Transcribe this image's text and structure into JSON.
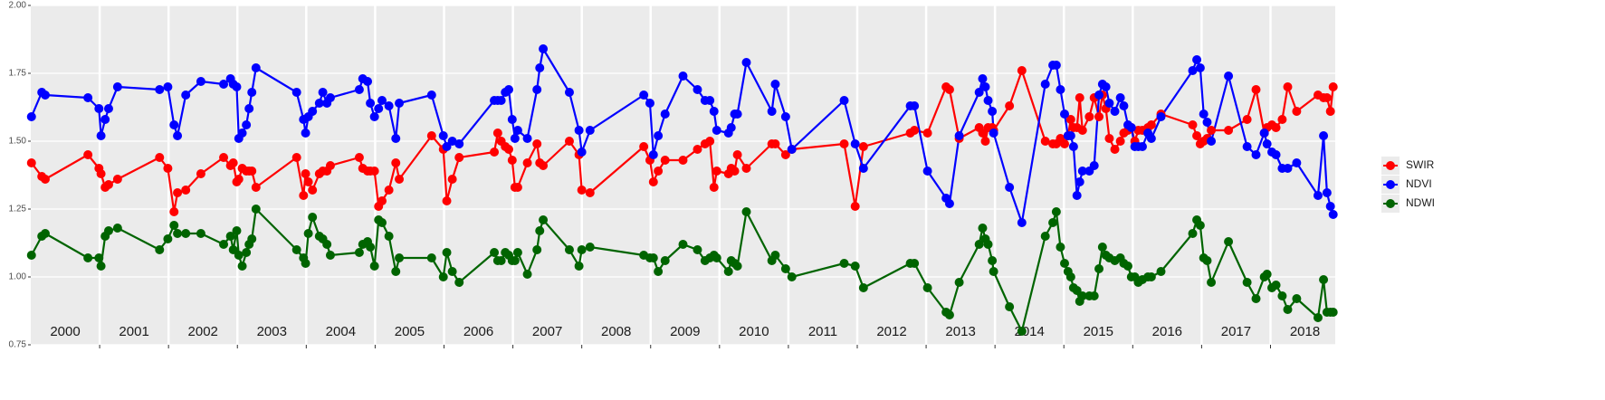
{
  "chart_data": {
    "type": "line",
    "x": [
      2000.01,
      2000.16,
      2000.21,
      2000.83,
      2000.99,
      2001.02,
      2001.08,
      2001.13,
      2001.26,
      2001.87,
      2001.99,
      2002.08,
      2002.13,
      2002.25,
      2002.47,
      2002.8,
      2002.9,
      2002.94,
      2002.99,
      2003.02,
      2003.07,
      2003.13,
      2003.17,
      2003.21,
      2003.27,
      2003.86,
      2003.96,
      2003.99,
      2004.03,
      2004.09,
      2004.19,
      2004.24,
      2004.3,
      2004.35,
      2004.77,
      2004.82,
      2004.89,
      2004.93,
      2004.99,
      2005.05,
      2005.1,
      2005.2,
      2005.3,
      2005.35,
      2005.82,
      2005.99,
      2006.04,
      2006.12,
      2006.22,
      2006.73,
      2006.78,
      2006.83,
      2006.89,
      2006.94,
      2006.99,
      2007.03,
      2007.07,
      2007.21,
      2007.35,
      2007.39,
      2007.44,
      2007.82,
      2007.96,
      2008.0,
      2008.12,
      2008.9,
      2008.99,
      2009.04,
      2009.11,
      2009.21,
      2009.47,
      2009.68,
      2009.79,
      2009.86,
      2009.92,
      2009.96,
      2010.13,
      2010.17,
      2010.22,
      2010.26,
      2010.39,
      2010.76,
      2010.81,
      2010.96,
      2011.05,
      2011.81,
      2011.97,
      2012.09,
      2012.77,
      2012.83,
      2013.02,
      2013.29,
      2013.34,
      2013.48,
      2013.77,
      2013.82,
      2013.86,
      2013.9,
      2013.96,
      2013.98,
      2014.21,
      2014.39,
      2014.73,
      2014.84,
      2014.89,
      2014.95,
      2015.01,
      2015.06,
      2015.1,
      2015.14,
      2015.19,
      2015.23,
      2015.27,
      2015.37,
      2015.44,
      2015.51,
      2015.56,
      2015.61,
      2015.66,
      2015.74,
      2015.82,
      2015.87,
      2015.93,
      2015.98,
      2016.03,
      2016.08,
      2016.14,
      2016.22,
      2016.27,
      2016.41,
      2016.87,
      2016.93,
      2016.98,
      2017.03,
      2017.08,
      2017.14,
      2017.39,
      2017.66,
      2017.79,
      2017.91,
      2017.95,
      2018.02,
      2018.08,
      2018.17,
      2018.25,
      2018.38,
      2018.69,
      2018.77,
      2018.82,
      2018.87,
      2018.91
    ],
    "series": [
      {
        "name": "SWIR",
        "color": "#ff0000",
        "values": [
          1.42,
          1.37,
          1.36,
          1.45,
          1.4,
          1.38,
          1.33,
          1.34,
          1.36,
          1.44,
          1.4,
          1.24,
          1.31,
          1.32,
          1.38,
          1.44,
          1.41,
          1.42,
          1.35,
          1.36,
          1.4,
          1.39,
          1.39,
          1.39,
          1.33,
          1.44,
          1.3,
          1.38,
          1.35,
          1.32,
          1.38,
          1.39,
          1.39,
          1.41,
          1.44,
          1.4,
          1.39,
          1.39,
          1.39,
          1.26,
          1.28,
          1.32,
          1.42,
          1.36,
          1.52,
          1.47,
          1.28,
          1.36,
          1.44,
          1.46,
          1.53,
          1.5,
          1.48,
          1.47,
          1.43,
          1.33,
          1.33,
          1.42,
          1.49,
          1.42,
          1.41,
          1.5,
          1.45,
          1.32,
          1.31,
          1.48,
          1.43,
          1.35,
          1.39,
          1.43,
          1.43,
          1.47,
          1.49,
          1.5,
          1.33,
          1.39,
          1.38,
          1.4,
          1.39,
          1.45,
          1.4,
          1.49,
          1.49,
          1.45,
          1.47,
          1.49,
          1.26,
          1.48,
          1.53,
          1.54,
          1.53,
          1.7,
          1.69,
          1.51,
          1.55,
          1.53,
          1.5,
          1.55,
          1.55,
          1.54,
          1.63,
          1.76,
          1.5,
          1.49,
          1.49,
          1.51,
          1.49,
          1.52,
          1.58,
          1.55,
          1.55,
          1.66,
          1.54,
          1.59,
          1.66,
          1.59,
          1.67,
          1.62,
          1.51,
          1.47,
          1.5,
          1.53,
          1.54,
          1.55,
          1.5,
          1.54,
          1.54,
          1.55,
          1.56,
          1.6,
          1.56,
          1.52,
          1.49,
          1.5,
          1.51,
          1.54,
          1.54,
          1.58,
          1.69,
          1.53,
          1.55,
          1.56,
          1.55,
          1.58,
          1.7,
          1.61,
          1.67,
          1.66,
          1.66,
          1.61,
          1.7
        ]
      },
      {
        "name": "NDVI",
        "color": "#0000ff",
        "values": [
          1.59,
          1.68,
          1.67,
          1.66,
          1.62,
          1.52,
          1.58,
          1.62,
          1.7,
          1.69,
          1.7,
          1.56,
          1.52,
          1.67,
          1.72,
          1.71,
          1.73,
          1.71,
          1.7,
          1.51,
          1.53,
          1.56,
          1.62,
          1.68,
          1.77,
          1.68,
          1.58,
          1.53,
          1.59,
          1.61,
          1.64,
          1.68,
          1.64,
          1.66,
          1.69,
          1.73,
          1.72,
          1.64,
          1.59,
          1.62,
          1.65,
          1.63,
          1.51,
          1.64,
          1.67,
          1.52,
          1.48,
          1.5,
          1.49,
          1.65,
          1.65,
          1.65,
          1.68,
          1.69,
          1.58,
          1.51,
          1.54,
          1.51,
          1.69,
          1.77,
          1.84,
          1.68,
          1.54,
          1.46,
          1.54,
          1.67,
          1.64,
          1.45,
          1.52,
          1.6,
          1.74,
          1.69,
          1.65,
          1.65,
          1.61,
          1.54,
          1.53,
          1.55,
          1.6,
          1.6,
          1.79,
          1.61,
          1.71,
          1.59,
          1.47,
          1.65,
          1.49,
          1.4,
          1.63,
          1.63,
          1.39,
          1.29,
          1.27,
          1.52,
          1.68,
          1.73,
          1.7,
          1.65,
          1.61,
          1.53,
          1.33,
          1.2,
          1.71,
          1.78,
          1.78,
          1.69,
          1.6,
          1.52,
          1.52,
          1.48,
          1.3,
          1.35,
          1.39,
          1.39,
          1.41,
          1.67,
          1.71,
          1.7,
          1.64,
          1.61,
          1.66,
          1.63,
          1.56,
          1.55,
          1.48,
          1.48,
          1.48,
          1.53,
          1.51,
          1.59,
          1.76,
          1.8,
          1.77,
          1.6,
          1.57,
          1.5,
          1.74,
          1.48,
          1.45,
          1.53,
          1.49,
          1.46,
          1.45,
          1.4,
          1.4,
          1.42,
          1.3,
          1.52,
          1.31,
          1.26,
          1.23
        ]
      },
      {
        "name": "NDWI",
        "color": "#006400",
        "values": [
          1.08,
          1.15,
          1.16,
          1.07,
          1.07,
          1.04,
          1.15,
          1.17,
          1.18,
          1.1,
          1.14,
          1.19,
          1.16,
          1.16,
          1.16,
          1.12,
          1.15,
          1.1,
          1.17,
          1.08,
          1.04,
          1.09,
          1.12,
          1.14,
          1.25,
          1.1,
          1.07,
          1.05,
          1.16,
          1.22,
          1.15,
          1.14,
          1.12,
          1.08,
          1.09,
          1.12,
          1.13,
          1.11,
          1.04,
          1.21,
          1.2,
          1.15,
          1.02,
          1.07,
          1.07,
          1.0,
          1.09,
          1.02,
          0.98,
          1.09,
          1.06,
          1.06,
          1.09,
          1.08,
          1.06,
          1.06,
          1.09,
          1.01,
          1.1,
          1.17,
          1.21,
          1.1,
          1.04,
          1.1,
          1.11,
          1.08,
          1.07,
          1.07,
          1.02,
          1.06,
          1.12,
          1.1,
          1.06,
          1.07,
          1.08,
          1.07,
          1.02,
          1.06,
          1.05,
          1.04,
          1.24,
          1.06,
          1.08,
          1.03,
          1.0,
          1.05,
          1.04,
          0.96,
          1.05,
          1.05,
          0.96,
          0.87,
          0.86,
          0.98,
          1.12,
          1.18,
          1.14,
          1.12,
          1.06,
          1.02,
          0.89,
          0.8,
          1.15,
          1.2,
          1.24,
          1.11,
          1.05,
          1.02,
          1.0,
          0.96,
          0.95,
          0.91,
          0.93,
          0.93,
          0.93,
          1.03,
          1.11,
          1.08,
          1.07,
          1.06,
          1.07,
          1.05,
          1.04,
          1.0,
          1.0,
          0.98,
          0.99,
          1.0,
          1.0,
          1.02,
          1.16,
          1.21,
          1.19,
          1.07,
          1.06,
          0.98,
          1.13,
          0.98,
          0.92,
          1.0,
          1.01,
          0.96,
          0.97,
          0.93,
          0.88,
          0.92,
          0.85,
          0.99,
          0.87,
          0.87,
          0.87
        ]
      }
    ],
    "xlim": [
      2000,
      2018.94
    ],
    "xgrid": [
      2001,
      2002,
      2003,
      2004,
      2005,
      2006,
      2007,
      2008,
      2009,
      2010,
      2011,
      2012,
      2013,
      2014,
      2015,
      2016,
      2017,
      2018
    ],
    "xticks": [
      {
        "value": 2000.5,
        "label": "2000"
      },
      {
        "value": 2001.5,
        "label": "2001"
      },
      {
        "value": 2002.5,
        "label": "2002"
      },
      {
        "value": 2003.5,
        "label": "2003"
      },
      {
        "value": 2004.5,
        "label": "2004"
      },
      {
        "value": 2005.5,
        "label": "2005"
      },
      {
        "value": 2006.5,
        "label": "2006"
      },
      {
        "value": 2007.5,
        "label": "2007"
      },
      {
        "value": 2008.5,
        "label": "2008"
      },
      {
        "value": 2009.5,
        "label": "2009"
      },
      {
        "value": 2010.5,
        "label": "2010"
      },
      {
        "value": 2011.5,
        "label": "2011"
      },
      {
        "value": 2012.5,
        "label": "2012"
      },
      {
        "value": 2013.5,
        "label": "2013"
      },
      {
        "value": 2014.5,
        "label": "2014"
      },
      {
        "value": 2015.5,
        "label": "2015"
      },
      {
        "value": 2016.5,
        "label": "2016"
      },
      {
        "value": 2017.5,
        "label": "2017"
      },
      {
        "value": 2018.5,
        "label": "2018"
      }
    ],
    "ylim": [
      0.75,
      2.0
    ],
    "yticks": [
      {
        "value": 0.75,
        "label": "0.75"
      },
      {
        "value": 1.0,
        "label": "1.00"
      },
      {
        "value": 1.25,
        "label": "1.25"
      },
      {
        "value": 1.5,
        "label": "1.50"
      },
      {
        "value": 1.75,
        "label": "1.75"
      },
      {
        "value": 2.0,
        "label": "2.00"
      }
    ],
    "grid": true,
    "legend": "right"
  }
}
